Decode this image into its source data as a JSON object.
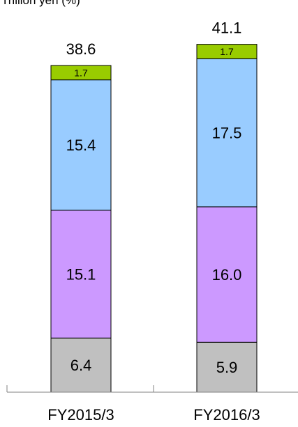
{
  "header": {
    "unit_text": "Trillion yen (%)"
  },
  "chart_data": {
    "type": "bar",
    "stacked": true,
    "categories": [
      "FY2015/3",
      "FY2016/3"
    ],
    "series": [
      {
        "values": [
          6.4,
          5.9
        ],
        "color": "#c0c0c0"
      },
      {
        "values": [
          15.1,
          16.0
        ],
        "color": "#cc99ff"
      },
      {
        "values": [
          15.4,
          17.5
        ],
        "color": "#99ccff"
      },
      {
        "values": [
          1.7,
          1.7
        ],
        "color": "#99cc00"
      }
    ],
    "totals": [
      38.6,
      41.1
    ],
    "segment_labels": [
      [
        "6.4",
        "15.1",
        "15.4",
        "1.7"
      ],
      [
        "5.9",
        "16.0",
        "17.5",
        "1.7"
      ]
    ],
    "total_labels": [
      "38.6",
      "41.1"
    ],
    "title": "",
    "xlabel": "",
    "ylabel": "",
    "grid": false,
    "legend": "none"
  }
}
